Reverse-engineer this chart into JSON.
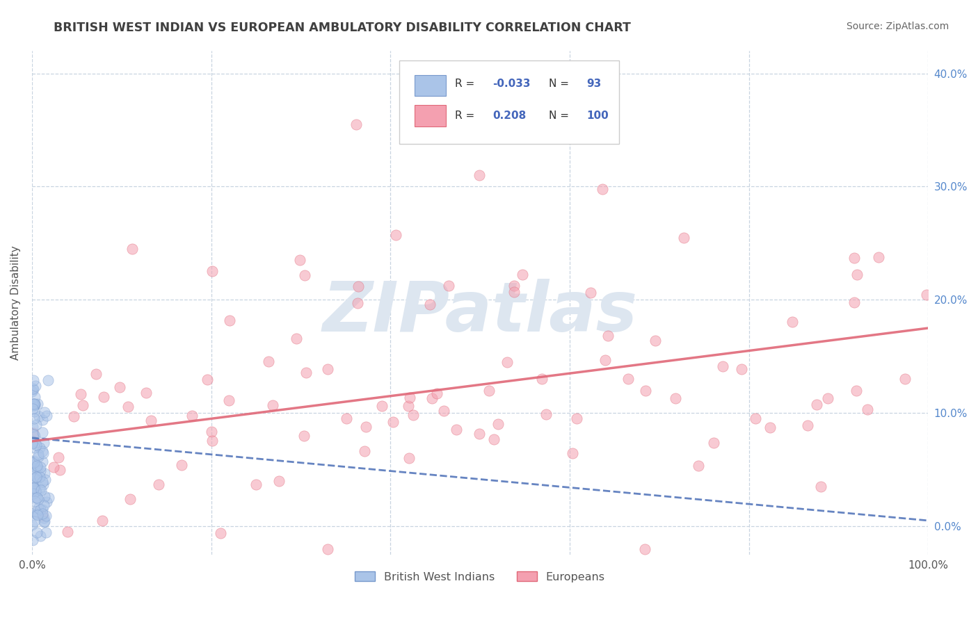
{
  "title": "BRITISH WEST INDIAN VS EUROPEAN AMBULATORY DISABILITY CORRELATION CHART",
  "source": "Source: ZipAtlas.com",
  "ylabel": "Ambulatory Disability",
  "xlim": [
    0.0,
    1.0
  ],
  "ylim": [
    -0.025,
    0.42
  ],
  "x_ticks": [
    0.0,
    0.2,
    0.4,
    0.6,
    0.8,
    1.0
  ],
  "x_tick_labels": [
    "0.0%",
    "",
    "",
    "",
    "",
    "100.0%"
  ],
  "y_ticks_left": [
    0.0,
    0.1,
    0.2,
    0.3,
    0.4
  ],
  "y_tick_labels_left": [
    "",
    "",
    "",
    "",
    ""
  ],
  "y_ticks_right": [
    0.0,
    0.1,
    0.2,
    0.3,
    0.4
  ],
  "y_tick_labels_right": [
    "0.0%",
    "10.0%",
    "20.0%",
    "30.0%",
    "40.0%"
  ],
  "blue_R": -0.033,
  "blue_N": 93,
  "pink_R": 0.208,
  "pink_N": 100,
  "blue_line_start_y": 0.078,
  "blue_line_end_y": 0.005,
  "pink_line_start_y": 0.075,
  "pink_line_end_y": 0.175,
  "background_color": "#ffffff",
  "grid_color": "#c8d4e0",
  "title_color": "#404040",
  "axis_label_color": "#555555",
  "tick_color_right": "#5588cc",
  "tick_color_bottom": "#555555",
  "source_color": "#666666",
  "watermark_color": "#dde6f0",
  "blue_fill": "#aac4e8",
  "blue_edge": "#7799cc",
  "blue_line_color": "#5577bb",
  "pink_fill": "#f4a0b0",
  "pink_edge": "#e06878",
  "pink_line_color": "#e06878",
  "legend_R_color": "#4466bb",
  "scatter_size": 120,
  "scatter_alpha": 0.55
}
